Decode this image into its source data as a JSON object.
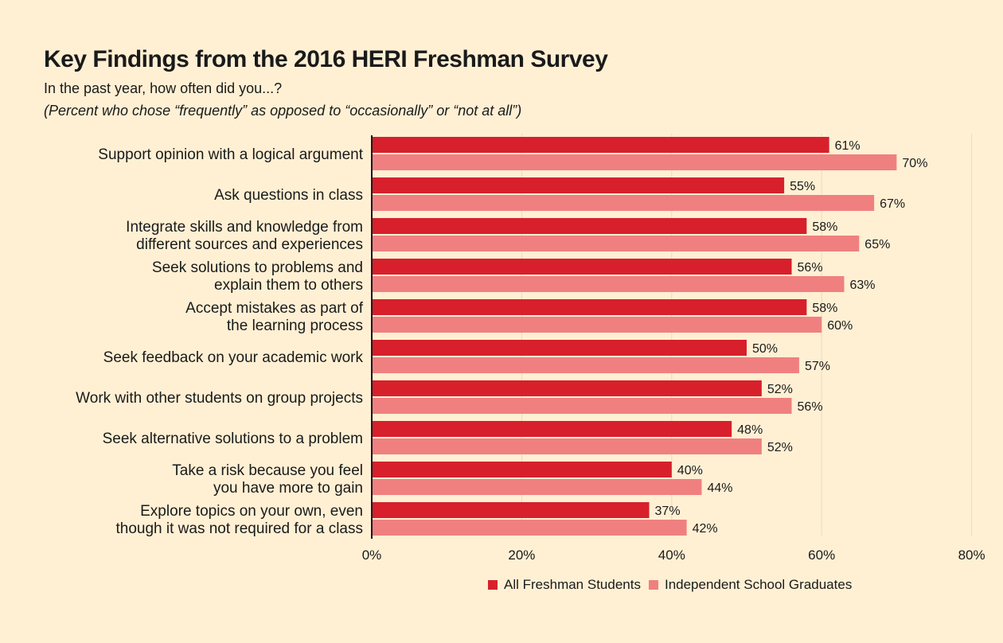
{
  "title": "Key Findings from the 2016 HERI Freshman Survey",
  "subtitle": "In the past year, how often did you...?",
  "note": "(Percent who chose “frequently” as opposed to “occasionally” or “not at all”)",
  "colors": {
    "all": "#d7202b",
    "independent": "#f08080",
    "grid": "#e8dcc0",
    "axis": "#1a1a1a"
  },
  "chart_data": {
    "type": "bar",
    "orientation": "horizontal",
    "categories": [
      [
        "Support opinion with a logical argument"
      ],
      [
        "Ask questions in class"
      ],
      [
        "Integrate skills and knowledge from",
        "different sources and experiences"
      ],
      [
        "Seek solutions to problems and",
        "explain them to others"
      ],
      [
        "Accept mistakes as part of",
        "the learning process"
      ],
      [
        "Seek feedback on your academic work"
      ],
      [
        "Work with other students on group projects"
      ],
      [
        "Seek alternative solutions to a problem"
      ],
      [
        "Take a risk because you feel",
        "you have more to gain"
      ],
      [
        "Explore topics on your own, even",
        "though it was not required for a class"
      ]
    ],
    "series": [
      {
        "name": "All Freshman Students",
        "values": [
          61,
          55,
          58,
          56,
          58,
          50,
          52,
          48,
          40,
          37
        ]
      },
      {
        "name": "Independent School Graduates",
        "values": [
          70,
          67,
          65,
          63,
          60,
          57,
          56,
          52,
          44,
          42
        ]
      }
    ],
    "xlim": [
      0,
      80
    ],
    "xticks": [
      "0%",
      "20%",
      "40%",
      "60%",
      "80%"
    ],
    "value_suffix": "%",
    "grid": true,
    "legend": "bottom"
  }
}
